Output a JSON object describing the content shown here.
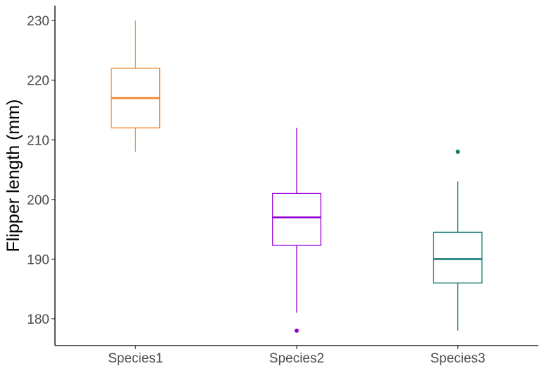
{
  "chart_data": {
    "type": "boxplot",
    "title": "",
    "xlabel": "",
    "ylabel": "Flipper length (mm)",
    "ylim": [
      175.5,
      232.5
    ],
    "yticks": [
      180,
      190,
      200,
      210,
      220,
      230
    ],
    "grid": false,
    "legend": "none",
    "categories": [
      "Species1",
      "Species2",
      "Species3"
    ],
    "boxes": [
      {
        "category": "Species1",
        "color": "#F5821F",
        "whisker_low": 208,
        "q1": 212,
        "median": 217,
        "q3": 222,
        "whisker_high": 230,
        "outliers": []
      },
      {
        "category": "Species2",
        "color": "#9400D3",
        "whisker_low": 181,
        "q1": 192.3,
        "median": 197,
        "q3": 201,
        "whisker_high": 212,
        "outliers": [
          178
        ]
      },
      {
        "category": "Species3",
        "color": "#137B72",
        "whisker_low": 178,
        "q1": 186,
        "median": 190,
        "q3": 194.5,
        "whisker_high": 203,
        "outliers": [
          208
        ]
      }
    ]
  }
}
